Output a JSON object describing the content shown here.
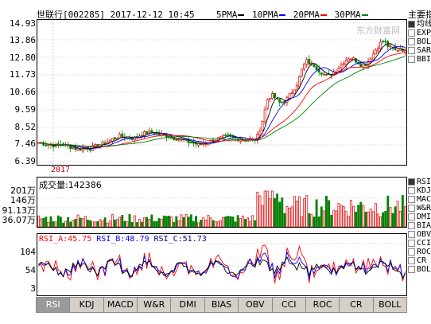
{
  "header": {
    "title": "世联行[002285] 2017-12-12 10:45",
    "ma": [
      {
        "label": "5PMA",
        "color": "#000000"
      },
      {
        "label": "10PMA",
        "color": "#0000ff"
      },
      {
        "label": "20PMA",
        "color": "#ff0000"
      },
      {
        "label": "30PMA",
        "color": "#008000"
      }
    ]
  },
  "watermark": "东方财富网",
  "price_axis": [
    "14.93",
    "13.86",
    "12.80",
    "11.73",
    "10.66",
    "9.59",
    "8.52",
    "7.46",
    "6.39"
  ],
  "year_label": "2017",
  "volume": {
    "title": "成交量:142386",
    "axis": [
      "201万",
      "146万",
      "91.13万",
      "36.07万"
    ]
  },
  "rsi": {
    "a_label": "RSI_A:45.75",
    "b_label": "RSI_B:48.79",
    "c_label": "RSI_C:51.73",
    "a_color": "#ff0000",
    "b_color": "#0000ff",
    "c_color": "#000000",
    "axis": [
      "104",
      "54",
      "3"
    ]
  },
  "main_side": {
    "title": "主要指标",
    "items": [
      {
        "label": "均线",
        "checked": true
      },
      {
        "label": "EXPMA",
        "checked": false
      },
      {
        "label": "BOLL",
        "checked": false
      },
      {
        "label": "SAR",
        "checked": false
      },
      {
        "label": "BBI",
        "checked": false
      }
    ]
  },
  "sub_side": {
    "items": [
      {
        "label": "RSI",
        "checked": true
      },
      {
        "label": "KDJ",
        "checked": false
      },
      {
        "label": "MACD",
        "checked": false
      },
      {
        "label": "W&R",
        "checked": false
      },
      {
        "label": "DMI",
        "checked": false
      },
      {
        "label": "BIAS",
        "checked": false
      },
      {
        "label": "OBV",
        "checked": false
      },
      {
        "label": "CCI",
        "checked": false
      },
      {
        "label": "ROC",
        "checked": false
      },
      {
        "label": "CR",
        "checked": false
      },
      {
        "label": "BOLL",
        "checked": false
      }
    ]
  },
  "tabs": [
    "RSI",
    "KDJ",
    "MACD",
    "W&R",
    "DMI",
    "BIAS",
    "OBV",
    "CCI",
    "ROC",
    "CR",
    "BOLL"
  ],
  "active_tab": "RSI",
  "chart_data": {
    "type": "candlestick",
    "ylim": [
      6.39,
      14.93
    ],
    "series_close": [
      7.6,
      7.55,
      7.5,
      7.45,
      7.4,
      7.5,
      7.45,
      7.35,
      7.3,
      7.2,
      7.25,
      7.3,
      7.25,
      7.35,
      7.45,
      7.55,
      7.65,
      7.8,
      7.9,
      8.0,
      7.95,
      7.9,
      7.85,
      8.0,
      8.1,
      8.2,
      8.25,
      8.2,
      8.1,
      8.05,
      8.0,
      7.9,
      7.85,
      7.8,
      7.7,
      7.6,
      7.55,
      7.5,
      7.55,
      7.6,
      7.7,
      7.8,
      7.85,
      7.9,
      7.95,
      7.9,
      7.85,
      7.8,
      7.75,
      7.8,
      7.7,
      8.1,
      9.0,
      10.2,
      10.5,
      10.3,
      10.0,
      10.1,
      10.4,
      10.8,
      11.2,
      12.0,
      12.6,
      12.4,
      12.3,
      12.0,
      11.8,
      11.6,
      11.8,
      12.0,
      12.3,
      12.6,
      12.8,
      12.7,
      12.5,
      12.3,
      12.4,
      12.8,
      13.2,
      13.6,
      13.8,
      13.5,
      13.3,
      13.2,
      13.4,
      13.1
    ]
  }
}
